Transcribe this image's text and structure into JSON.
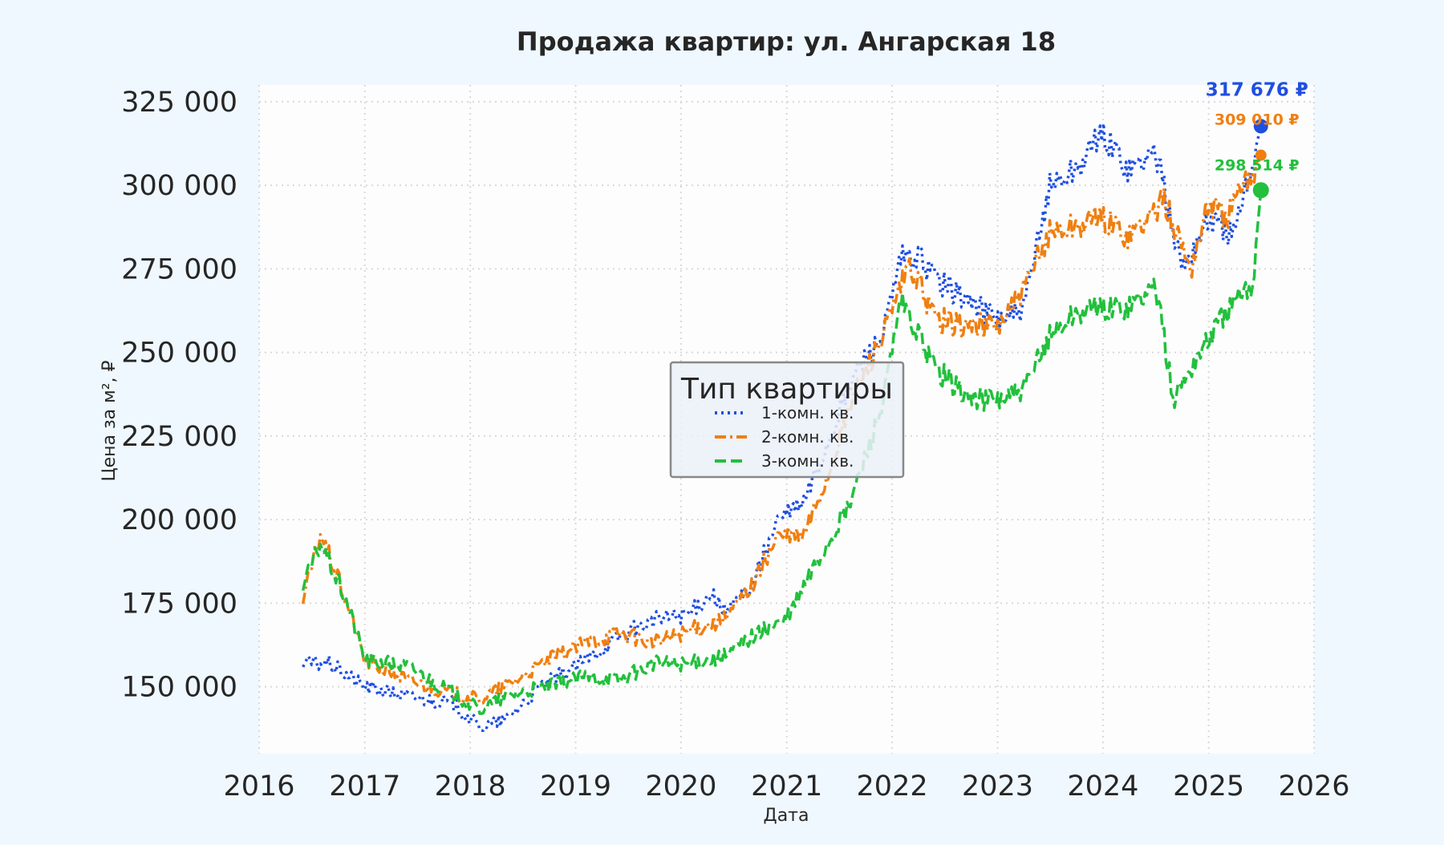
{
  "chart_data": {
    "type": "line",
    "title": "Продажа квартир: ул. Ангарская 18",
    "xlabel": "Дата",
    "ylabel": "Цена за м², ₽",
    "xlim": [
      "2016-01-01",
      "2026-01-01"
    ],
    "ylim": [
      130000,
      330000
    ],
    "x_ticks": [
      "2016",
      "2017",
      "2018",
      "2019",
      "2020",
      "2021",
      "2022",
      "2023",
      "2024",
      "2025",
      "2026"
    ],
    "y_ticks": [
      "150 000",
      "175 000",
      "200 000",
      "225 000",
      "250 000",
      "275 000",
      "300 000",
      "325 000"
    ],
    "y_tick_values": [
      150000,
      175000,
      200000,
      225000,
      250000,
      275000,
      300000,
      325000
    ],
    "grid": true,
    "legend": {
      "title": "Тип квартиры",
      "position": "center"
    },
    "series": [
      {
        "name": "1-комн. кв.",
        "color": "#1f4fe0",
        "style": "dotted",
        "x": [
          "2016-06-01",
          "2016-09-01",
          "2017-01-01",
          "2017-06-01",
          "2017-11-01",
          "2018-02-01",
          "2018-05-01",
          "2018-09-01",
          "2019-01-01",
          "2019-06-01",
          "2019-10-01",
          "2020-02-01",
          "2020-04-15",
          "2020-06-01",
          "2020-09-01",
          "2020-12-01",
          "2021-03-01",
          "2021-06-01",
          "2021-09-01",
          "2021-12-01",
          "2022-02-01",
          "2022-04-01",
          "2022-07-01",
          "2022-10-01",
          "2023-01-01",
          "2023-04-01",
          "2023-07-01",
          "2023-10-01",
          "2024-01-01",
          "2024-04-01",
          "2024-07-01",
          "2024-10-01",
          "2025-01-01",
          "2025-04-01",
          "2025-07-01"
        ],
        "y": [
          157000,
          157000,
          150000,
          147000,
          145000,
          138000,
          140000,
          150000,
          156000,
          165000,
          170000,
          172000,
          178000,
          172000,
          180000,
          200000,
          205000,
          225000,
          245000,
          255000,
          278000,
          278000,
          270000,
          265000,
          260000,
          262000,
          300000,
          305000,
          315000,
          305000,
          310000,
          275000,
          290000,
          285000,
          317676
        ]
      },
      {
        "name": "2-комн. кв.",
        "color": "#f07f10",
        "style": "dashdot",
        "x": [
          "2016-06-01",
          "2016-08-01",
          "2016-11-01",
          "2017-01-01",
          "2017-06-01",
          "2017-11-01",
          "2018-02-01",
          "2018-05-01",
          "2018-10-01",
          "2019-02-01",
          "2019-06-01",
          "2019-10-01",
          "2020-02-01",
          "2020-06-01",
          "2020-09-01",
          "2020-12-01",
          "2021-03-01",
          "2021-06-01",
          "2021-09-01",
          "2021-12-01",
          "2022-03-01",
          "2022-06-01",
          "2022-09-01",
          "2023-01-01",
          "2023-04-01",
          "2023-07-01",
          "2023-10-01",
          "2024-01-01",
          "2024-04-01",
          "2024-08-01",
          "2024-11-01",
          "2025-01-01",
          "2025-03-01",
          "2025-07-01"
        ],
        "y": [
          176000,
          196000,
          175000,
          158000,
          152000,
          148000,
          146000,
          150000,
          158000,
          163000,
          166000,
          163000,
          167000,
          170000,
          180000,
          195000,
          195000,
          215000,
          240000,
          255000,
          276000,
          260000,
          258000,
          258000,
          268000,
          286000,
          288000,
          290000,
          285000,
          295000,
          275000,
          295000,
          290000,
          309010
        ]
      },
      {
        "name": "3-комн. кв.",
        "color": "#22c03c",
        "style": "dashed",
        "x": [
          "2016-06-01",
          "2016-08-01",
          "2016-11-01",
          "2017-01-01",
          "2017-06-01",
          "2017-11-01",
          "2018-02-01",
          "2018-06-01",
          "2018-10-01",
          "2019-02-01",
          "2019-06-01",
          "2019-10-01",
          "2020-02-01",
          "2020-06-01",
          "2020-09-01",
          "2021-01-01",
          "2021-04-01",
          "2021-08-01",
          "2021-12-01",
          "2022-02-01",
          "2022-06-01",
          "2022-10-01",
          "2023-01-01",
          "2023-04-01",
          "2023-07-01",
          "2023-10-01",
          "2024-01-01",
          "2024-04-01",
          "2024-07-01",
          "2024-09-01",
          "2024-12-01",
          "2025-03-01",
          "2025-06-01",
          "2025-07-01"
        ],
        "y": [
          180000,
          193000,
          175000,
          158000,
          156000,
          148000,
          143000,
          148000,
          150000,
          153000,
          152000,
          157000,
          157000,
          159000,
          165000,
          170000,
          185000,
          203000,
          235000,
          265000,
          245000,
          236000,
          236000,
          238000,
          255000,
          262000,
          263000,
          264000,
          270000,
          236000,
          250000,
          262000,
          270000,
          298514
        ]
      }
    ],
    "end_labels": [
      {
        "series": "1-комн. кв.",
        "text": "317 676 ₽"
      },
      {
        "series": "2-комн. кв.",
        "text": "309 010 ₽"
      },
      {
        "series": "3-комн. кв.",
        "text": "298 514 ₽"
      }
    ]
  }
}
